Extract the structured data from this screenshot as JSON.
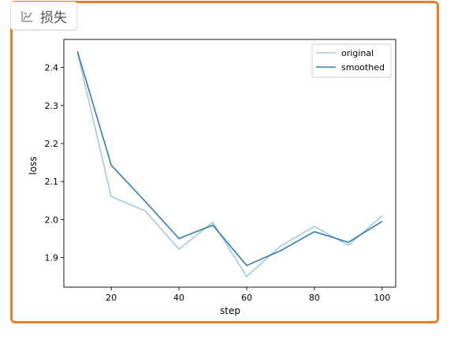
{
  "panel": {
    "title": "损失",
    "icon": "chart-icon",
    "border_color": "#ee7d2a"
  },
  "chart_data": {
    "type": "line",
    "xlabel": "step",
    "ylabel": "loss",
    "xlim": [
      6,
      104
    ],
    "ylim": [
      1.822,
      2.474
    ],
    "xticks": [
      20,
      40,
      60,
      80,
      100
    ],
    "yticks": [
      1.9,
      2.0,
      2.1,
      2.2,
      2.3,
      2.4
    ],
    "legend_position": "top-right",
    "grid": false,
    "series": [
      {
        "name": "original",
        "color": "#a6c9df",
        "x": [
          10,
          20,
          30,
          40,
          50,
          60,
          70,
          80,
          90,
          100
        ],
        "y": [
          2.44,
          2.06,
          2.023,
          1.922,
          1.993,
          1.85,
          1.93,
          1.982,
          1.932,
          2.01
        ]
      },
      {
        "name": "smoothed",
        "color": "#2e7fb5",
        "x": [
          10,
          20,
          30,
          40,
          50,
          60,
          70,
          80,
          90,
          100
        ],
        "y": [
          2.443,
          2.143,
          2.048,
          1.95,
          1.985,
          1.879,
          1.918,
          1.968,
          1.94,
          1.995
        ]
      }
    ]
  }
}
